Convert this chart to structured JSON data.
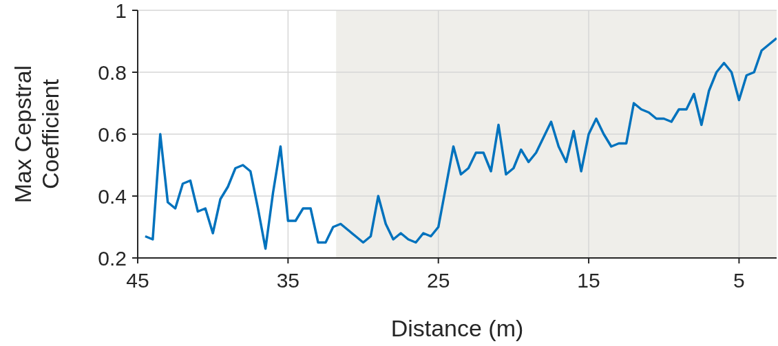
{
  "chart_data": {
    "type": "line",
    "xlabel": "Distance (m)",
    "ylabel": "Max Cepstral Coefficient",
    "xlim": [
      45,
      2.5
    ],
    "xticks": [
      45,
      35,
      25,
      15,
      5
    ],
    "ylim": [
      0.2,
      1
    ],
    "yticks": [
      0.2,
      0.4,
      0.6,
      0.8,
      1
    ],
    "grid": true,
    "legend": false,
    "marker": "none",
    "line_style": "solid",
    "bands": [
      {
        "axis": "x",
        "from": 31.8,
        "to": 2.5,
        "color": "#efeeea"
      }
    ],
    "x": [
      44.5,
      44,
      43.5,
      43,
      42.5,
      42,
      41.5,
      41,
      40.5,
      40,
      39.5,
      39,
      38.5,
      38,
      37.5,
      37,
      36.5,
      36,
      35.5,
      35,
      34.5,
      34,
      33.5,
      33,
      32.5,
      32,
      31.5,
      31,
      30.5,
      30,
      29.5,
      29,
      28.5,
      28,
      27.5,
      27,
      26.5,
      26,
      25.5,
      25,
      24.5,
      24,
      23.5,
      23,
      22.5,
      22,
      21.5,
      21,
      20.5,
      20,
      19.5,
      19,
      18.5,
      18,
      17.5,
      17,
      16.5,
      16,
      15.5,
      15,
      14.5,
      14,
      13.5,
      13,
      12.5,
      12,
      11.5,
      11,
      10.5,
      10,
      9.5,
      9,
      8.5,
      8,
      7.5,
      7,
      6.5,
      6,
      5.5,
      5,
      4.5,
      4,
      3.5,
      3,
      2.5
    ],
    "series": [
      {
        "color": "#0072bd",
        "values": [
          0.27,
          0.26,
          0.6,
          0.38,
          0.36,
          0.44,
          0.45,
          0.35,
          0.36,
          0.28,
          0.39,
          0.43,
          0.49,
          0.5,
          0.48,
          0.36,
          0.23,
          0.41,
          0.56,
          0.32,
          0.32,
          0.36,
          0.36,
          0.25,
          0.25,
          0.3,
          0.31,
          0.29,
          0.27,
          0.25,
          0.27,
          0.4,
          0.31,
          0.26,
          0.28,
          0.26,
          0.25,
          0.28,
          0.27,
          0.3,
          0.43,
          0.56,
          0.47,
          0.49,
          0.54,
          0.54,
          0.48,
          0.63,
          0.47,
          0.49,
          0.55,
          0.51,
          0.54,
          0.59,
          0.64,
          0.56,
          0.51,
          0.61,
          0.48,
          0.6,
          0.65,
          0.6,
          0.56,
          0.57,
          0.57,
          0.7,
          0.68,
          0.67,
          0.65,
          0.65,
          0.64,
          0.68,
          0.68,
          0.73,
          0.63,
          0.74,
          0.8,
          0.83,
          0.8,
          0.71,
          0.79,
          0.8,
          0.87,
          0.89,
          0.91
        ]
      }
    ]
  }
}
